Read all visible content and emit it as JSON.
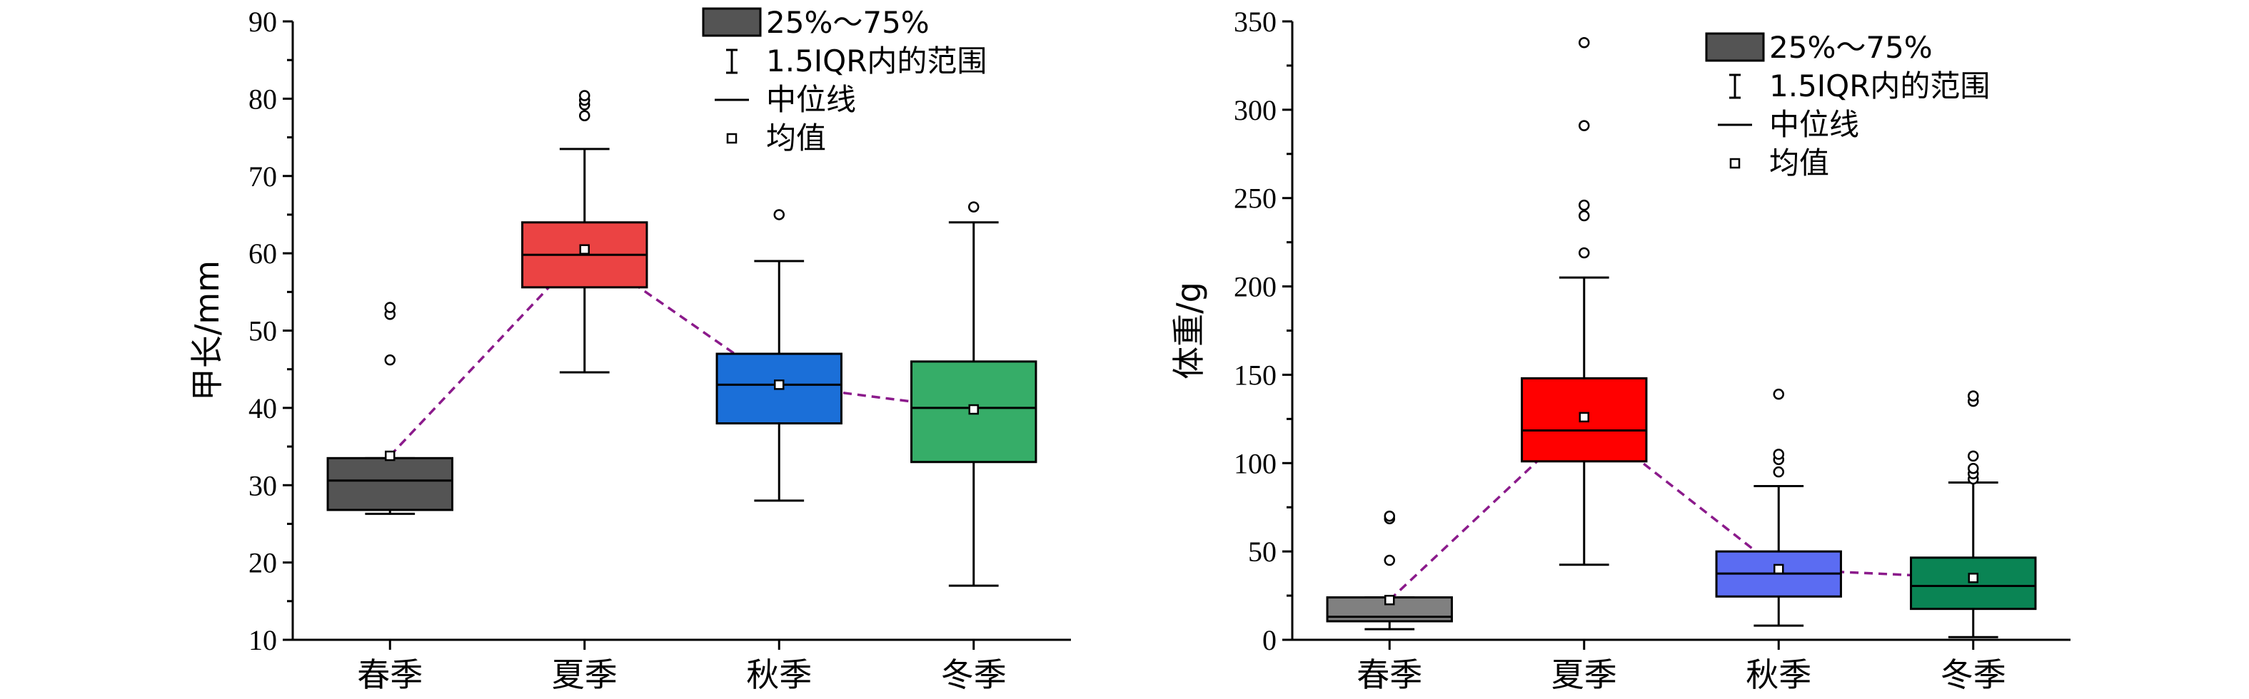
{
  "chart_data": [
    {
      "type": "box",
      "ylabel": "甲长/mm",
      "ylim": [
        10,
        90
      ],
      "yticks": [
        10,
        20,
        30,
        40,
        50,
        60,
        70,
        80,
        90
      ],
      "categories": [
        "春季",
        "夏季",
        "秋季",
        "冬季"
      ],
      "legend": {
        "position": "top-right",
        "items": [
          "25%～75%",
          "1.5IQR内的范围",
          "中位线",
          "均值"
        ]
      },
      "boxes": [
        {
          "category": "春季",
          "color": "#545454",
          "q1": 26.8,
          "median": 30.6,
          "q3": 33.5,
          "whisker_low": 26.3,
          "whisker_high": 33.5,
          "mean": 33.8,
          "outliers": [
            46.2,
            52.1,
            53.0
          ]
        },
        {
          "category": "夏季",
          "color": "#eb4343",
          "q1": 55.6,
          "median": 59.8,
          "q3": 64.0,
          "whisker_low": 44.6,
          "whisker_high": 73.5,
          "mean": 60.5,
          "outliers": [
            77.8,
            79.2,
            79.8,
            80.4
          ]
        },
        {
          "category": "秋季",
          "color": "#1b6fd8",
          "q1": 38.0,
          "median": 43.0,
          "q3": 47.0,
          "whisker_low": 28.0,
          "whisker_high": 59.0,
          "mean": 43.0,
          "outliers": [
            65.0
          ]
        },
        {
          "category": "冬季",
          "color": "#36ad68",
          "q1": 33.0,
          "median": 40.0,
          "q3": 46.0,
          "whisker_low": 17.0,
          "whisker_high": 64.0,
          "mean": 39.8,
          "outliers": [
            66.0
          ]
        }
      ],
      "legend_swatch_color": "#545454"
    },
    {
      "type": "box",
      "ylabel": "体重/g",
      "ylim": [
        0,
        350
      ],
      "yticks": [
        0,
        50,
        100,
        150,
        200,
        250,
        300,
        350
      ],
      "categories": [
        "春季",
        "夏季",
        "秋季",
        "冬季"
      ],
      "legend": {
        "position": "top-right",
        "items": [
          "25%～75%",
          "1.5IQR内的范围",
          "中位线",
          "均值"
        ]
      },
      "boxes": [
        {
          "category": "春季",
          "color": "#808080",
          "q1": 10.5,
          "median": 13.0,
          "q3": 24.0,
          "whisker_low": 6.0,
          "whisker_high": 24.0,
          "mean": 22.5,
          "outliers": [
            45.0,
            68.5,
            70.0
          ]
        },
        {
          "category": "夏季",
          "color": "#ff0000",
          "q1": 101.0,
          "median": 118.5,
          "q3": 148.0,
          "whisker_low": 42.5,
          "whisker_high": 205.0,
          "mean": 126.0,
          "outliers": [
            219.0,
            240.0,
            246.0,
            291.0,
            338.0
          ]
        },
        {
          "category": "秋季",
          "color": "#5b6cf2",
          "q1": 24.5,
          "median": 37.5,
          "q3": 50.0,
          "whisker_low": 8.0,
          "whisker_high": 87.0,
          "mean": 40.0,
          "outliers": [
            95.0,
            102.0,
            105.0,
            139.0
          ]
        },
        {
          "category": "冬季",
          "color": "#0a8454",
          "q1": 17.5,
          "median": 30.5,
          "q3": 46.5,
          "whisker_low": 1.5,
          "whisker_high": 89.0,
          "mean": 35.0,
          "outliers": [
            91.0,
            94.0,
            97.0,
            104.0,
            135.0,
            138.0
          ]
        }
      ],
      "legend_swatch_color": "#545454"
    }
  ],
  "mean_line_color": "#8b1a8b"
}
